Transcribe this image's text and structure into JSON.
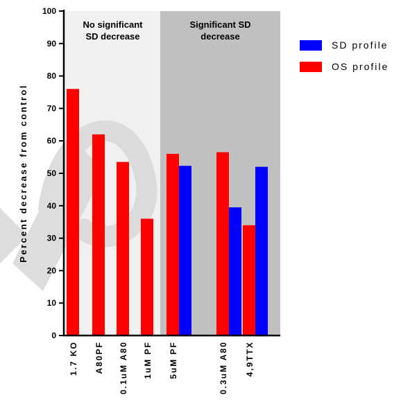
{
  "chart_data": {
    "type": "bar",
    "title": "",
    "xlabel": "",
    "ylabel": "Percent decrease from control",
    "ylim": [
      0,
      100
    ],
    "yticks": [
      0,
      10,
      20,
      30,
      40,
      50,
      60,
      70,
      80,
      90,
      100
    ],
    "grid": false,
    "legend_position": "top-right",
    "categories": [
      "1.7 KO",
      "A80PF",
      "0.1uM A80",
      "1uM PF",
      "5uM PF",
      "0.3uM A80",
      "4,9TTX"
    ],
    "series": [
      {
        "name": "OS profile",
        "color": "#ff0000",
        "values": [
          76,
          62,
          53.5,
          36,
          56,
          56.5,
          34
        ]
      },
      {
        "name": "SD profile",
        "color": "#0000ff",
        "values": [
          null,
          null,
          null,
          null,
          52.3,
          39.5,
          52
        ]
      }
    ],
    "legend_order": [
      "SD profile",
      "OS profile"
    ],
    "regions": [
      {
        "label_lines": [
          "No significant",
          "SD decrease"
        ],
        "color": "#f0f0f0",
        "categories": [
          "1.7 KO",
          "A80PF",
          "0.1uM A80",
          "1uM PF"
        ]
      },
      {
        "label_lines": [
          "Significant SD",
          "decrease"
        ],
        "color": "#c0c0c0",
        "categories": [
          "5uM PF",
          "0.3uM A80",
          "4,9TTX"
        ]
      }
    ],
    "colors": {
      "os": "#ff0000",
      "sd": "#0000ff",
      "watermark": "#d8d8d8"
    }
  }
}
